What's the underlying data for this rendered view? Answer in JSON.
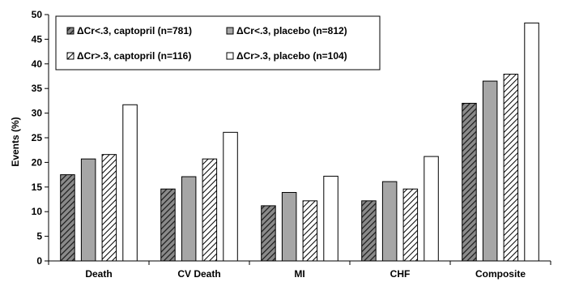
{
  "chart_data": {
    "type": "bar",
    "title": "",
    "xlabel": "",
    "ylabel": "Events (%)",
    "ylim": [
      0,
      50
    ],
    "yticks": [
      0,
      5,
      10,
      15,
      20,
      25,
      30,
      35,
      40,
      45,
      50
    ],
    "grid": false,
    "legend_position": "top-left",
    "categories": [
      "Death",
      "CV Death",
      "MI",
      "CHF",
      "Composite"
    ],
    "series": [
      {
        "name": "ΔCr<.3, captopril (n=781)",
        "pattern": "hatch-dark",
        "color": "#555555",
        "values": [
          17.5,
          14.6,
          11.2,
          12.2,
          32.0
        ]
      },
      {
        "name": "ΔCr<.3, placebo (n=812)",
        "pattern": "solid",
        "color": "#a6a6a6",
        "values": [
          20.7,
          17.1,
          13.9,
          16.1,
          36.5
        ]
      },
      {
        "name": "ΔCr>.3, captopril (n=116)",
        "pattern": "hatch-light",
        "color": "#ffffff",
        "values": [
          21.6,
          20.7,
          12.2,
          14.6,
          37.9
        ]
      },
      {
        "name": "ΔCr>.3, placebo (n=104)",
        "pattern": "solid",
        "color": "#ffffff",
        "values": [
          31.7,
          26.1,
          17.2,
          21.2,
          48.3
        ]
      }
    ]
  }
}
